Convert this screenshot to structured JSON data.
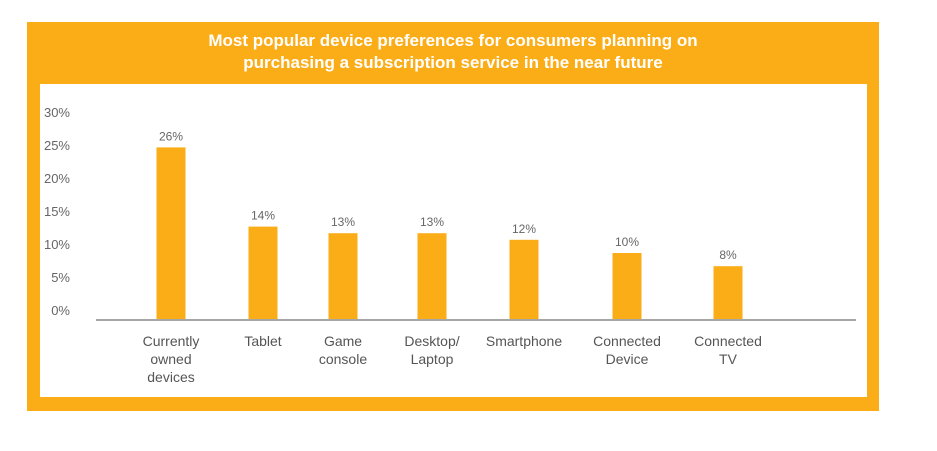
{
  "chart_data": {
    "type": "bar",
    "title_lines": [
      "Most popular device preferences for consumers planning on",
      "purchasing a subscription service in the near future"
    ],
    "categories": [
      [
        "Currently",
        "owned",
        "devices"
      ],
      [
        "Tablet"
      ],
      [
        "Game",
        "console"
      ],
      [
        "Desktop/",
        "Laptop"
      ],
      [
        "Smartphone"
      ],
      [
        "Connected",
        "Device"
      ],
      [
        "Connected",
        "TV"
      ]
    ],
    "values": [
      26,
      14,
      13,
      13,
      12,
      10,
      8
    ],
    "data_labels": [
      "26%",
      "14%",
      "13%",
      "13%",
      "12%",
      "10%",
      "8%"
    ],
    "yticks": [
      "0%",
      "5%",
      "10%",
      "15%",
      "20%",
      "25%",
      "30%"
    ],
    "ylim": [
      0,
      30
    ],
    "xlabel": "",
    "ylabel": "",
    "grid": false,
    "colors": {
      "bar": "#FBAD18",
      "frame": "#FBAD18",
      "axis": "#A6A6A6",
      "title": "#FFFFFF",
      "text": "#666666"
    }
  }
}
